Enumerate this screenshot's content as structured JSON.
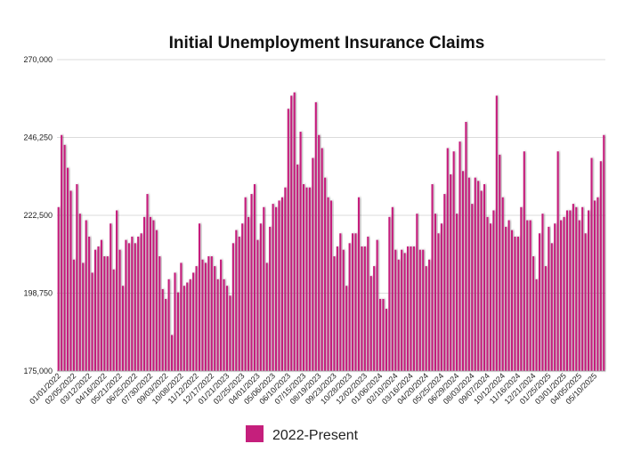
{
  "chart_data": {
    "type": "bar",
    "title": "Initial Unemployment Insurance Claims",
    "ylim": [
      175000,
      270000
    ],
    "yticks": [
      "175,000",
      "198,750",
      "222,500",
      "246,250",
      "270,000"
    ],
    "ytick_values": [
      175000,
      198750,
      222500,
      246250,
      270000
    ],
    "grid": true,
    "legend_position": "bottom",
    "color": "#c51f7c",
    "x_tick_labels": [
      "01/01/2022",
      "02/05/2022",
      "03/12/2022",
      "04/16/2022",
      "05/21/2022",
      "06/25/2022",
      "07/30/2022",
      "09/03/2022",
      "10/08/2022",
      "11/12/2022",
      "12/17/2022",
      "01/21/2023",
      "02/25/2023",
      "04/01/2023",
      "05/06/2023",
      "06/10/2023",
      "07/15/2023",
      "08/19/2023",
      "09/23/2023",
      "10/28/2023",
      "12/02/2023",
      "01/06/2024",
      "02/10/2024",
      "03/16/2024",
      "04/20/2024",
      "05/25/2024",
      "06/29/2024",
      "08/03/2024",
      "09/07/2024",
      "10/12/2024",
      "11/16/2024",
      "12/21/2024",
      "01/25/2025",
      "03/01/2025",
      "04/05/2025",
      "05/10/2025"
    ],
    "series": [
      {
        "name": "2022-Present",
        "values": [
          225000,
          247000,
          244000,
          237000,
          230000,
          209000,
          232000,
          223000,
          208000,
          221000,
          216000,
          205000,
          212000,
          213000,
          215000,
          210000,
          210000,
          220000,
          206000,
          224000,
          212000,
          201000,
          215000,
          214000,
          216000,
          214000,
          216000,
          217000,
          222000,
          229000,
          222000,
          221000,
          218000,
          210000,
          200000,
          197000,
          203000,
          186000,
          205000,
          199000,
          208000,
          201000,
          202000,
          203000,
          205000,
          207000,
          220000,
          209000,
          208000,
          210000,
          210000,
          207000,
          203000,
          209000,
          203000,
          201000,
          198000,
          214000,
          218000,
          216000,
          220000,
          228000,
          222000,
          229000,
          232000,
          215000,
          220000,
          225000,
          208000,
          219000,
          226000,
          225000,
          227000,
          228000,
          231000,
          255000,
          259000,
          260000,
          238000,
          248000,
          232000,
          231000,
          231000,
          240000,
          257000,
          247000,
          243000,
          234000,
          228000,
          227000,
          210000,
          213000,
          217000,
          212000,
          201000,
          214000,
          217000,
          217000,
          228000,
          213000,
          213000,
          216000,
          204000,
          207000,
          215000,
          197000,
          197000,
          194000,
          222000,
          225000,
          212000,
          209000,
          212000,
          211000,
          213000,
          213000,
          213000,
          223000,
          212000,
          212000,
          207000,
          209000,
          232000,
          223000,
          217000,
          220000,
          229000,
          243000,
          235000,
          242000,
          223000,
          245000,
          236000,
          251000,
          234000,
          226000,
          234000,
          233000,
          230000,
          232000,
          222000,
          220000,
          224000,
          259000,
          241000,
          228000,
          219000,
          221000,
          218000,
          216000,
          216000,
          225000,
          242000,
          221000,
          221000,
          210000,
          203000,
          217000,
          223000,
          207000,
          219000,
          214000,
          220000,
          242000,
          221000,
          222000,
          224000,
          224000,
          226000,
          225000,
          221000,
          225000,
          217000,
          224000,
          240000,
          227000,
          228000,
          239000,
          247000
        ]
      }
    ]
  }
}
